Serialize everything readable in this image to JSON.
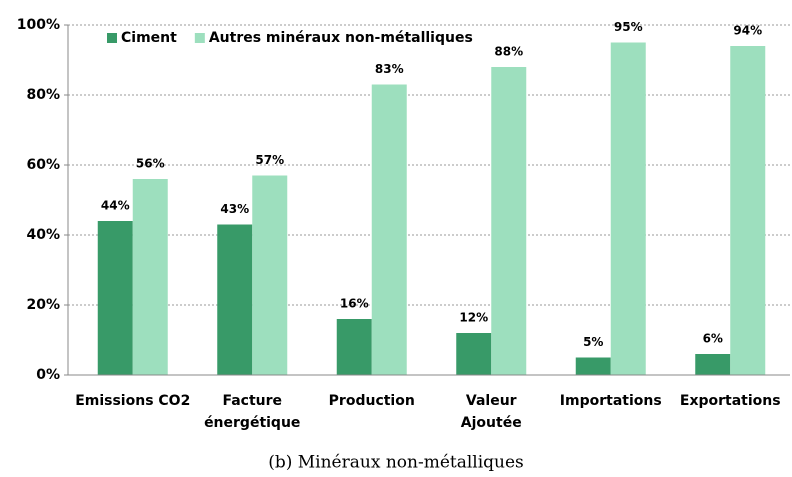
{
  "chart_data": {
    "type": "bar",
    "caption": "(b) Minéraux non-métalliques",
    "categories": [
      "Emissions CO2",
      "Facture\nénergétique",
      "Production",
      "Valeur\nAjoutée",
      "Importations",
      "Exportations"
    ],
    "series": [
      {
        "name": "Ciment",
        "color": "#389a68",
        "values": [
          44,
          43,
          16,
          12,
          5,
          6
        ],
        "value_labels": [
          "44%",
          "43%",
          "16%",
          "12%",
          "5%",
          "6%"
        ]
      },
      {
        "name": "Autres minéraux non-métalliques",
        "color": "#9ddfbe",
        "values": [
          56,
          57,
          83,
          88,
          95,
          94
        ],
        "value_labels": [
          "56%",
          "57%",
          "83%",
          "88%",
          "95%",
          "94%"
        ]
      }
    ],
    "ylim": [
      0,
      100
    ],
    "yticks": [
      {
        "value": 0,
        "label": "0%"
      },
      {
        "value": 20,
        "label": "20%"
      },
      {
        "value": 40,
        "label": "40%"
      },
      {
        "value": 60,
        "label": "60%"
      },
      {
        "value": 80,
        "label": "80%"
      },
      {
        "value": 100,
        "label": "100%"
      }
    ],
    "grid": true,
    "legend": "top-left"
  }
}
